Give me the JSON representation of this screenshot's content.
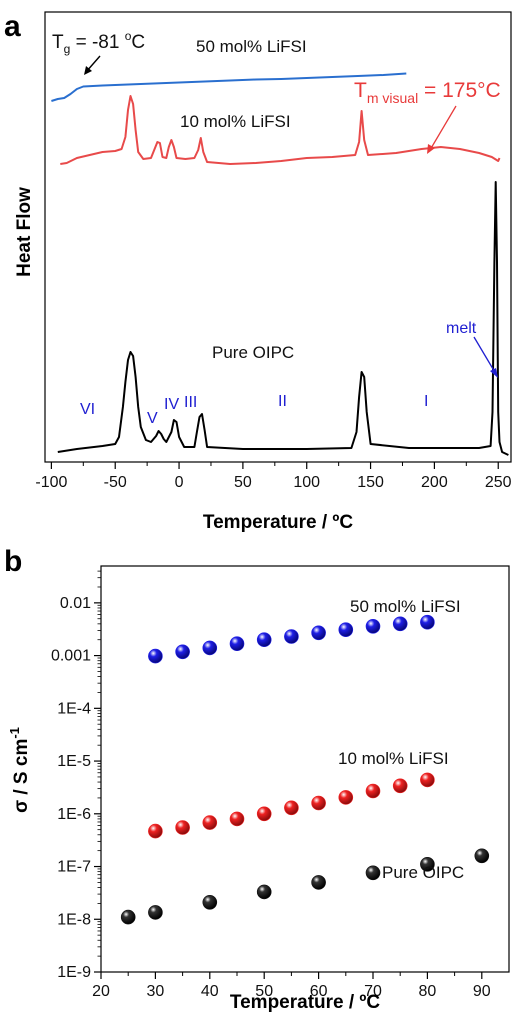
{
  "chart_data": [
    {
      "panel": "a",
      "type": "line",
      "xlabel": "Temperature / ºC",
      "ylabel": "Heat Flow",
      "xlim": [
        -105,
        260
      ],
      "xticks": [
        -100,
        -50,
        0,
        50,
        100,
        150,
        200,
        250
      ],
      "grid": false,
      "series": [
        {
          "name": "50 mol% LiFSI",
          "color": "#2a6fcf",
          "points": [
            [
              -100,
              89
            ],
            [
              -95,
              87
            ],
            [
              -90,
              86
            ],
            [
              -85,
              82
            ],
            [
              -80,
              77
            ],
            [
              -75,
              74.5
            ],
            [
              -60,
              73.5
            ],
            [
              -40,
              72.5
            ],
            [
              -20,
              71.5
            ],
            [
              0,
              70.5
            ],
            [
              20,
              69.5
            ],
            [
              40,
              68.5
            ],
            [
              60,
              67.5
            ],
            [
              80,
              67
            ],
            [
              100,
              66
            ],
            [
              120,
              65
            ],
            [
              140,
              64
            ],
            [
              160,
              63
            ],
            [
              178,
              61.5
            ]
          ]
        },
        {
          "name": "10 mol% LiFSI",
          "color": "#e84a4a",
          "points": [
            [
              -93,
              152
            ],
            [
              -88,
              151
            ],
            [
              -80,
              146
            ],
            [
              -70,
              143
            ],
            [
              -60,
              140
            ],
            [
              -50,
              139
            ],
            [
              -45,
              137
            ],
            [
              -42,
              125
            ],
            [
              -40,
              98
            ],
            [
              -38,
              84
            ],
            [
              -36,
              92
            ],
            [
              -34,
              118
            ],
            [
              -32,
              140
            ],
            [
              -28,
              147
            ],
            [
              -22,
              146
            ],
            [
              -17,
              130
            ],
            [
              -15,
              131
            ],
            [
              -13,
              145
            ],
            [
              -10,
              146
            ],
            [
              -8,
              135
            ],
            [
              -6,
              128
            ],
            [
              -4,
              135
            ],
            [
              -2,
              146
            ],
            [
              5,
              147
            ],
            [
              12,
              146
            ],
            [
              15,
              138
            ],
            [
              17,
              126
            ],
            [
              19,
              140
            ],
            [
              22,
              150
            ],
            [
              40,
              152
            ],
            [
              60,
              151
            ],
            [
              80,
              149
            ],
            [
              100,
              146
            ],
            [
              120,
              145
            ],
            [
              138,
              143
            ],
            [
              141,
              130
            ],
            [
              143,
              99
            ],
            [
              145,
              128
            ],
            [
              148,
              143
            ],
            [
              170,
              141
            ],
            [
              190,
              137
            ],
            [
              205,
              135
            ],
            [
              220,
              137
            ],
            [
              235,
              141
            ],
            [
              245,
              145
            ],
            [
              250,
              149
            ],
            [
              251,
              146
            ]
          ]
        },
        {
          "name": "Pure OIPC",
          "color": "#000000",
          "points": [
            [
              -95,
              440
            ],
            [
              -80,
              437
            ],
            [
              -60,
              434
            ],
            [
              -50,
              432
            ],
            [
              -47,
              425
            ],
            [
              -44,
              395
            ],
            [
              -42,
              370
            ],
            [
              -40,
              348
            ],
            [
              -38,
              340
            ],
            [
              -36,
              344
            ],
            [
              -34,
              365
            ],
            [
              -32,
              395
            ],
            [
              -30,
              415
            ],
            [
              -26,
              428
            ],
            [
              -22,
              430
            ],
            [
              -18,
              424
            ],
            [
              -16,
              419
            ],
            [
              -14,
              422
            ],
            [
              -12,
              427
            ],
            [
              -10,
              430
            ],
            [
              -6,
              420
            ],
            [
              -4,
              408
            ],
            [
              -2,
              410
            ],
            [
              0,
              425
            ],
            [
              4,
              435
            ],
            [
              12,
              435
            ],
            [
              14,
              420
            ],
            [
              16,
              405
            ],
            [
              18,
              402
            ],
            [
              20,
              418
            ],
            [
              22,
              435
            ],
            [
              50,
              437
            ],
            [
              100,
              437
            ],
            [
              135,
              436
            ],
            [
              139,
              420
            ],
            [
              141,
              385
            ],
            [
              143,
              360
            ],
            [
              145,
              365
            ],
            [
              147,
              400
            ],
            [
              150,
              432
            ],
            [
              180,
              436
            ],
            [
              215,
              436
            ],
            [
              235,
              436
            ],
            [
              244,
              434
            ],
            [
              245.5,
              400
            ],
            [
              247,
              250
            ],
            [
              248,
              170
            ],
            [
              249,
              250
            ],
            [
              250,
              400
            ],
            [
              251,
              430
            ],
            [
              253,
              440
            ],
            [
              258,
              443
            ]
          ]
        }
      ],
      "annotations": {
        "tg_label": "T",
        "tg_sub": "g",
        "tg_value": " = -81 ",
        "tg_deg": "o",
        "tg_unit": "C",
        "tm_label": "T",
        "tm_sub": "m visual",
        "tm_value": " = 175°C",
        "melt": "melt",
        "series_50": "50 mol% LiFSI",
        "series_10": "10 mol% LiFSI",
        "series_pure": "Pure OIPC"
      },
      "phases": [
        "VI",
        "V",
        "IV",
        "III",
        "II",
        "I"
      ]
    },
    {
      "panel": "b",
      "type": "scatter",
      "xlabel": "Temperature / ºC",
      "ylabel": "σ / S cm-1",
      "ylabel_main": "σ / S cm",
      "ylabel_sup": "-1",
      "xlim": [
        20,
        95
      ],
      "xticks": [
        20,
        30,
        40,
        50,
        60,
        70,
        80,
        90
      ],
      "ylim": [
        1e-09,
        0.05
      ],
      "yscale": "log",
      "yticks": [
        "1E-9",
        "1E-8",
        "1E-7",
        "1E-6",
        "1E-5",
        "1E-4",
        "0.001",
        "0.01"
      ],
      "grid": false,
      "series": [
        {
          "name": "50 mol% LiFSI",
          "color": "#1f1fe6",
          "x": [
            30,
            35,
            40,
            45,
            50,
            55,
            60,
            65,
            70,
            75,
            80
          ],
          "y": [
            0.00098,
            0.00118,
            0.0014,
            0.00168,
            0.002,
            0.0023,
            0.0027,
            0.0031,
            0.0036,
            0.004,
            0.0043
          ]
        },
        {
          "name": "10 mol% LiFSI",
          "color": "#ee2222",
          "x": [
            30,
            35,
            40,
            45,
            50,
            55,
            60,
            65,
            70,
            75,
            80
          ],
          "y": [
            4.7e-07,
            5.5e-07,
            6.8e-07,
            8e-07,
            1e-06,
            1.3e-06,
            1.6e-06,
            2.05e-06,
            2.7e-06,
            3.4e-06,
            4.4e-06
          ]
        },
        {
          "name": "Pure OIPC",
          "color": "#111111",
          "x": [
            25,
            30,
            40,
            50,
            60,
            70,
            80,
            90
          ],
          "y": [
            1.1e-08,
            1.35e-08,
            2.1e-08,
            3.3e-08,
            5e-08,
            7.6e-08,
            1.1e-07,
            1.6e-07
          ]
        }
      ]
    }
  ]
}
